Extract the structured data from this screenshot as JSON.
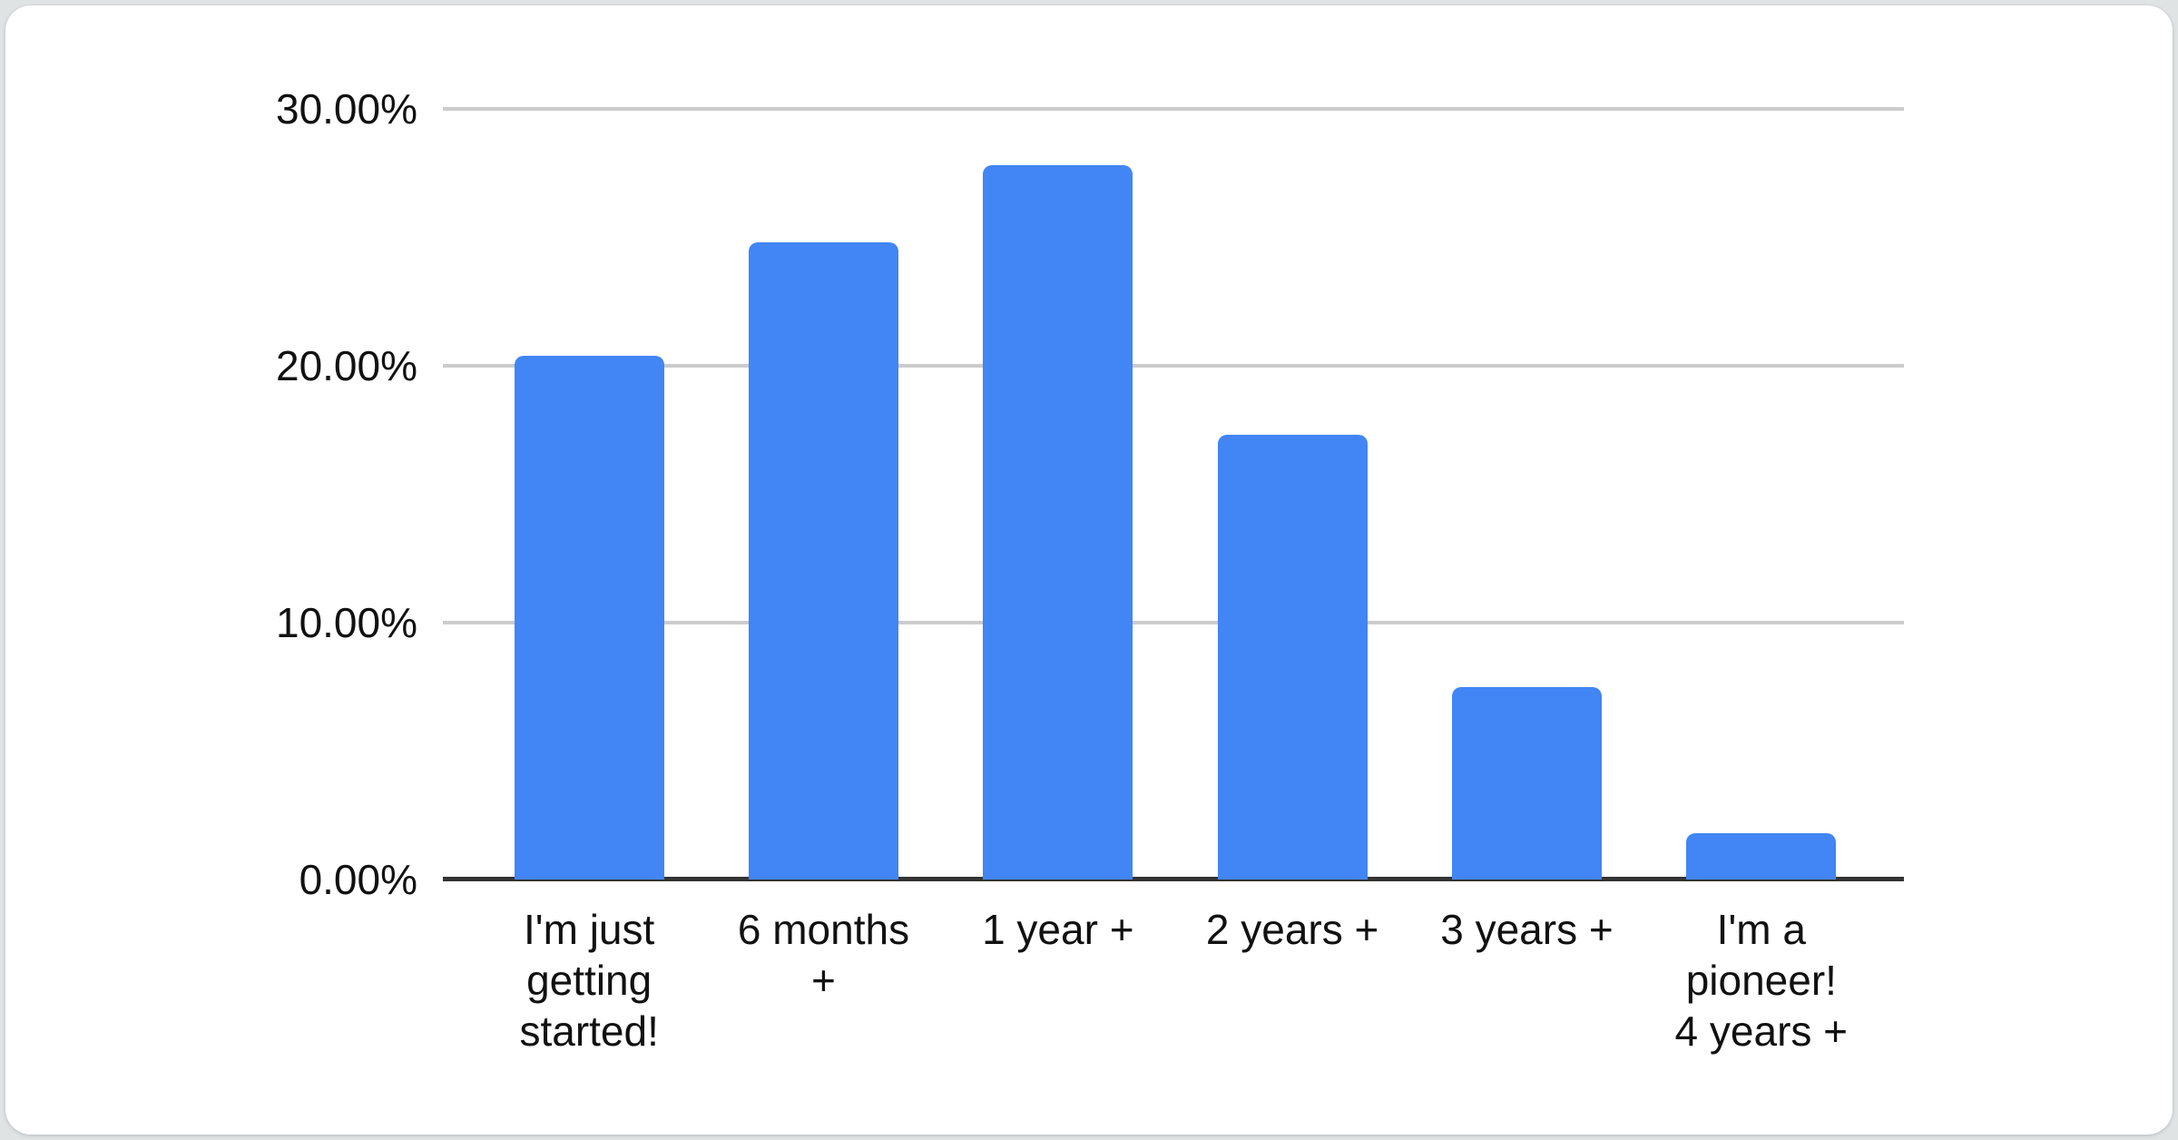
{
  "page": {
    "background_color": "#dfe3e4",
    "card_background_color": "#ffffff"
  },
  "chart_data": {
    "type": "bar",
    "title": "",
    "categories": [
      "I'm just getting started!",
      "6 months +",
      "1 year +",
      "2 years +",
      "3 years +",
      "I'm a pioneer! 4 years +"
    ],
    "values": [
      20.4,
      24.8,
      27.8,
      17.3,
      7.5,
      1.8
    ],
    "unit": "%",
    "xlabel": "",
    "ylabel": "",
    "ylim": [
      0,
      30
    ],
    "y_ticks": [
      "0.00%",
      "10.00%",
      "20.00%",
      "30.00%"
    ],
    "x_tick_labels_wrapped": [
      "I'm just\ngetting\nstarted!",
      "6 months\n+",
      "1 year +",
      "2 years +",
      "3 years +",
      "I'm a\npioneer!\n4 years +"
    ],
    "grid": true,
    "legend_position": "none",
    "bar_color": "#4285F4",
    "gridline_color": "#cccccc",
    "axis_line_color": "#333333",
    "label_color": "#111111"
  }
}
